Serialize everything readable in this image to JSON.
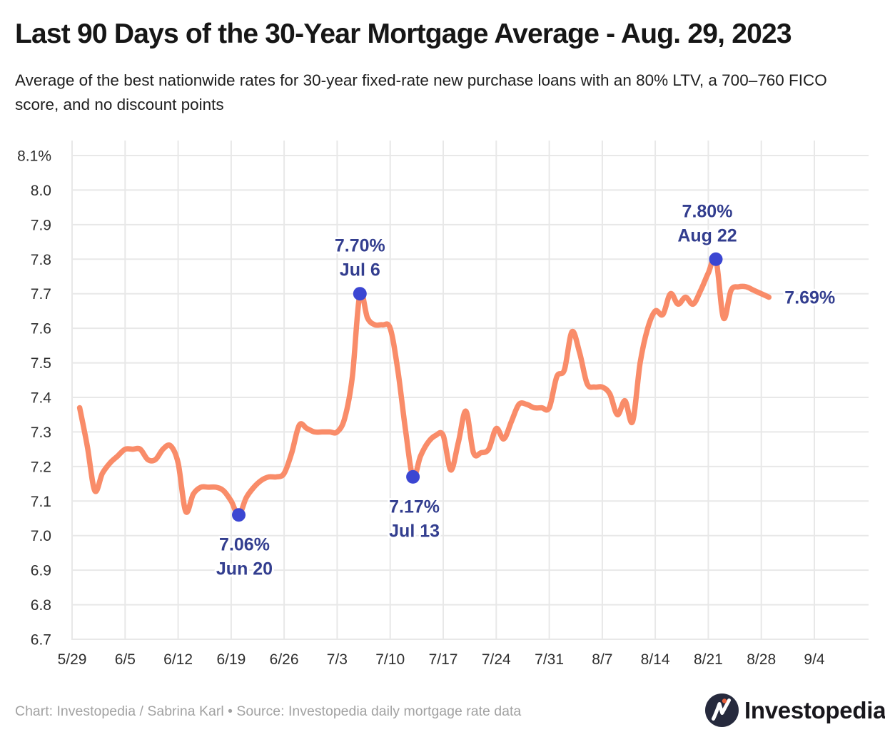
{
  "chart_data": {
    "type": "line",
    "title": "Last 90 Days of the 30-Year Mortgage Average - Aug. 29, 2023",
    "subtitle": "Average of the best nationwide rates for 30-year fixed-rate new purchase loans with an 80% LTV, a 700–760 FICO score, and no discount points",
    "series_name": "30-year mortgage rate average (%)",
    "ylim": [
      6.7,
      8.1
    ],
    "grid": true,
    "legend": "none",
    "x_ticks": [
      "5/29",
      "6/5",
      "6/12",
      "6/19",
      "6/26",
      "7/3",
      "7/10",
      "7/17",
      "7/24",
      "7/31",
      "8/7",
      "8/14",
      "8/21",
      "8/28",
      "9/4"
    ],
    "y_ticks": [
      {
        "label": "8.1%",
        "value": 8.1
      },
      {
        "label": "8.0",
        "value": 8.0
      },
      {
        "label": "7.9",
        "value": 7.9
      },
      {
        "label": "7.8",
        "value": 7.8
      },
      {
        "label": "7.7",
        "value": 7.7
      },
      {
        "label": "7.6",
        "value": 7.6
      },
      {
        "label": "7.5",
        "value": 7.5
      },
      {
        "label": "7.4",
        "value": 7.4
      },
      {
        "label": "7.3",
        "value": 7.3
      },
      {
        "label": "7.2",
        "value": 7.2
      },
      {
        "label": "7.1",
        "value": 7.1
      },
      {
        "label": "7.0",
        "value": 7.0
      },
      {
        "label": "6.9",
        "value": 6.9
      },
      {
        "label": "6.8",
        "value": 6.8
      },
      {
        "label": "6.7",
        "value": 6.7
      }
    ],
    "series": [
      [
        "5/30",
        7.37
      ],
      [
        "5/31",
        7.26
      ],
      [
        "6/1",
        7.13
      ],
      [
        "6/2",
        7.18
      ],
      [
        "6/3",
        7.21
      ],
      [
        "6/4",
        7.23
      ],
      [
        "6/5",
        7.25
      ],
      [
        "6/6",
        7.25
      ],
      [
        "6/7",
        7.25
      ],
      [
        "6/8",
        7.22
      ],
      [
        "6/9",
        7.22
      ],
      [
        "6/10",
        7.25
      ],
      [
        "6/11",
        7.26
      ],
      [
        "6/12",
        7.21
      ],
      [
        "6/13",
        7.07
      ],
      [
        "6/14",
        7.12
      ],
      [
        "6/15",
        7.14
      ],
      [
        "6/16",
        7.14
      ],
      [
        "6/17",
        7.14
      ],
      [
        "6/18",
        7.13
      ],
      [
        "6/19",
        7.1
      ],
      [
        "6/20",
        7.06
      ],
      [
        "6/21",
        7.11
      ],
      [
        "6/22",
        7.14
      ],
      [
        "6/23",
        7.16
      ],
      [
        "6/24",
        7.17
      ],
      [
        "6/25",
        7.17
      ],
      [
        "6/26",
        7.18
      ],
      [
        "6/27",
        7.24
      ],
      [
        "6/28",
        7.32
      ],
      [
        "6/29",
        7.31
      ],
      [
        "6/30",
        7.3
      ],
      [
        "7/1",
        7.3
      ],
      [
        "7/2",
        7.3
      ],
      [
        "7/3",
        7.3
      ],
      [
        "7/4",
        7.34
      ],
      [
        "7/5",
        7.46
      ],
      [
        "7/6",
        7.7
      ],
      [
        "7/7",
        7.63
      ],
      [
        "7/8",
        7.61
      ],
      [
        "7/9",
        7.61
      ],
      [
        "7/10",
        7.6
      ],
      [
        "7/11",
        7.48
      ],
      [
        "7/12",
        7.31
      ],
      [
        "7/13",
        7.17
      ],
      [
        "7/14",
        7.23
      ],
      [
        "7/15",
        7.27
      ],
      [
        "7/16",
        7.29
      ],
      [
        "7/17",
        7.29
      ],
      [
        "7/18",
        7.19
      ],
      [
        "7/19",
        7.27
      ],
      [
        "7/20",
        7.36
      ],
      [
        "7/21",
        7.24
      ],
      [
        "7/22",
        7.24
      ],
      [
        "7/23",
        7.25
      ],
      [
        "7/24",
        7.31
      ],
      [
        "7/25",
        7.28
      ],
      [
        "7/26",
        7.33
      ],
      [
        "7/27",
        7.38
      ],
      [
        "7/28",
        7.38
      ],
      [
        "7/29",
        7.37
      ],
      [
        "7/30",
        7.37
      ],
      [
        "7/31",
        7.37
      ],
      [
        "8/1",
        7.46
      ],
      [
        "8/2",
        7.48
      ],
      [
        "8/3",
        7.59
      ],
      [
        "8/4",
        7.53
      ],
      [
        "8/5",
        7.44
      ],
      [
        "8/6",
        7.43
      ],
      [
        "8/7",
        7.43
      ],
      [
        "8/8",
        7.41
      ],
      [
        "8/9",
        7.35
      ],
      [
        "8/10",
        7.39
      ],
      [
        "8/11",
        7.33
      ],
      [
        "8/12",
        7.5
      ],
      [
        "8/13",
        7.6
      ],
      [
        "8/14",
        7.65
      ],
      [
        "8/15",
        7.64
      ],
      [
        "8/16",
        7.7
      ],
      [
        "8/17",
        7.67
      ],
      [
        "8/18",
        7.69
      ],
      [
        "8/19",
        7.67
      ],
      [
        "8/20",
        7.71
      ],
      [
        "8/21",
        7.76
      ],
      [
        "8/22",
        7.8
      ],
      [
        "8/23",
        7.63
      ],
      [
        "8/24",
        7.71
      ],
      [
        "8/25",
        7.72
      ],
      [
        "8/26",
        7.72
      ],
      [
        "8/27",
        7.71
      ],
      [
        "8/28",
        7.7
      ],
      [
        "8/29",
        7.69
      ]
    ],
    "annotations": [
      {
        "value_label": "7.06%",
        "date_label": "Jun 20",
        "date": "6/20",
        "value": 7.06,
        "placement": "below",
        "dx": 8
      },
      {
        "value_label": "7.70%",
        "date_label": "Jul 6",
        "date": "7/6",
        "value": 7.7,
        "placement": "above",
        "dx": 0
      },
      {
        "value_label": "7.17%",
        "date_label": "Jul 13",
        "date": "7/13",
        "value": 7.17,
        "placement": "below",
        "dx": 2
      },
      {
        "value_label": "7.80%",
        "date_label": "Aug 22",
        "date": "8/22",
        "value": 7.8,
        "placement": "above",
        "dx": -12
      }
    ],
    "end_label": {
      "text": "7.69%",
      "date": "8/29",
      "value": 7.69
    }
  },
  "footer": {
    "credit": "Chart: Investopedia / Sabrina Karl • Source: Investopedia daily mortgage rate data",
    "logo_text": "Investopedia"
  },
  "colors": {
    "line": "#f98c69",
    "dot": "#3b46d2",
    "annotation_text": "#333e8f",
    "grid": "#e8e8e8",
    "axis_label": "#2e2e2e",
    "title": "#161616",
    "logo_circle": "#262a3d",
    "logo_dot": "#e8603c"
  }
}
